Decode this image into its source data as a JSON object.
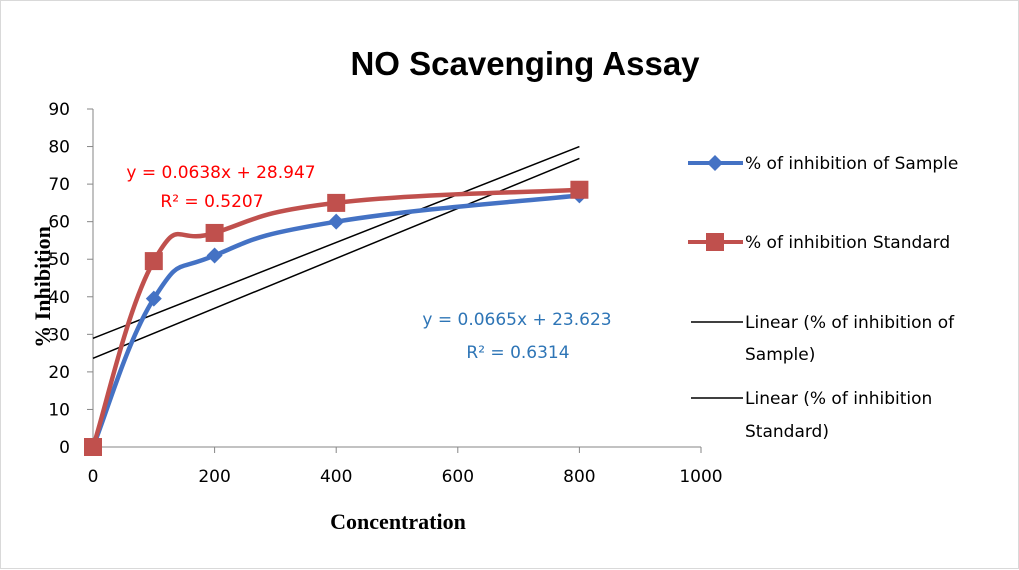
{
  "chart_data": {
    "type": "line",
    "title": "NO Scavenging Assay",
    "xlabel": "Concentration",
    "ylabel": "% Inhibition",
    "xlim": [
      0,
      1000
    ],
    "ylim": [
      0,
      90
    ],
    "x_ticks": [
      0,
      200,
      400,
      600,
      800,
      1000
    ],
    "y_ticks": [
      0,
      10,
      20,
      30,
      40,
      50,
      60,
      70,
      80,
      90
    ],
    "grid": false,
    "legend_position": "right",
    "series": [
      {
        "name": "% of inhibition of Sample",
        "color": "#4472c4",
        "marker": "diamond",
        "smooth": true,
        "x": [
          0,
          100,
          200,
          400,
          800
        ],
        "y": [
          0,
          39.5,
          51,
          60,
          67
        ]
      },
      {
        "name": "% of inhibition Standard",
        "color": "#c0504d",
        "marker": "square",
        "smooth": true,
        "x": [
          0,
          100,
          200,
          400,
          800
        ],
        "y": [
          0,
          49.5,
          57,
          65,
          68.5
        ]
      }
    ],
    "trendlines": [
      {
        "name": "Linear (% of inhibition of Sample)",
        "name_lines": [
          "Linear (% of inhibition of",
          "Sample)"
        ],
        "color": "#000000",
        "slope": 0.0665,
        "intercept": 23.623,
        "x_range": [
          0,
          800
        ],
        "equation": "y = 0.0665x + 23.623",
        "r2": "R² = 0.6314",
        "label_color": "#2e75b6"
      },
      {
        "name": "Linear (% of inhibition Standard)",
        "name_lines": [
          "Linear (% of inhibition",
          "Standard)"
        ],
        "color": "#000000",
        "slope": 0.0638,
        "intercept": 28.947,
        "x_range": [
          0,
          800
        ],
        "equation": "y = 0.0638x + 28.947",
        "r2": "R² = 0.5207",
        "label_color": "#ff0000"
      }
    ]
  }
}
